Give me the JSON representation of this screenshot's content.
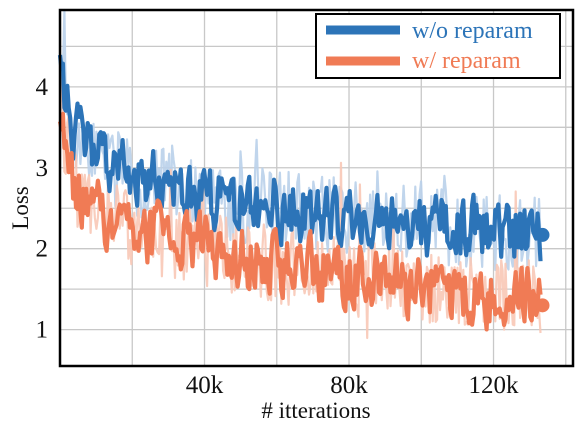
{
  "chart_data": {
    "type": "line",
    "title": "",
    "xlabel": "# itterations",
    "ylabel": "Loss",
    "xlim": [
      0,
      142000
    ],
    "ylim": [
      0.55,
      4.95
    ],
    "x_ticks": [
      40000,
      80000,
      120000
    ],
    "x_tick_labels": [
      "40k",
      "80k",
      "120k"
    ],
    "y_ticks": [
      1,
      2,
      3,
      4
    ],
    "y_tick_labels": [
      "1",
      "2",
      "3",
      "4"
    ],
    "grid": true,
    "legend_position": "top-right",
    "series": [
      {
        "name": "w/o reparam",
        "color": "#2c74b8",
        "light_color": "#b9d0ea",
        "x": [
          0,
          2000,
          5000,
          10000,
          15000,
          20000,
          30000,
          40000,
          50000,
          60000,
          70000,
          80000,
          90000,
          100000,
          110000,
          120000,
          125000,
          130000,
          133000
        ],
        "trend": [
          4.3,
          3.75,
          3.4,
          3.15,
          3.0,
          2.9,
          2.75,
          2.65,
          2.55,
          2.5,
          2.45,
          2.4,
          2.35,
          2.3,
          2.25,
          2.2,
          2.2,
          2.2,
          2.17
        ],
        "end_marker": 2.17
      },
      {
        "name": "w/ reparam",
        "color": "#f07b55",
        "light_color": "#f8c8b6",
        "x": [
          0,
          2000,
          5000,
          10000,
          15000,
          20000,
          30000,
          40000,
          50000,
          60000,
          70000,
          80000,
          90000,
          100000,
          110000,
          120000,
          125000,
          130000,
          133000
        ],
        "trend": [
          3.9,
          3.1,
          2.65,
          2.45,
          2.35,
          2.25,
          2.1,
          2.0,
          1.9,
          1.8,
          1.72,
          1.65,
          1.58,
          1.52,
          1.47,
          1.43,
          1.4,
          1.38,
          1.3
        ],
        "end_marker": 1.3
      }
    ]
  }
}
